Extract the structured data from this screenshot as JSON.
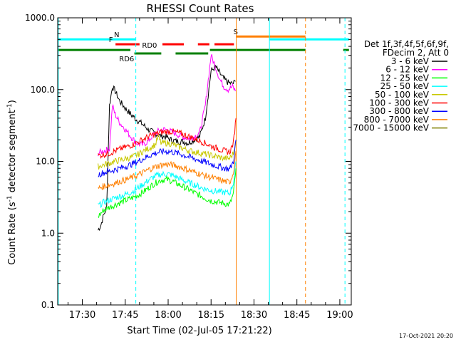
{
  "chart_data": {
    "type": "line",
    "title": "RHESSI Count Rates",
    "xlabel": "Start Time (02-Jul-05 17:21:22)",
    "ylabel_main": "Count Rate (s",
    "ylabel_sup": "-1",
    "ylabel_rest": " detector segment",
    "ylabel_end": ")",
    "yscale": "log",
    "xlim_min": [
      1041.4,
      1144
    ],
    "ylim": [
      0.1,
      1000
    ],
    "x_ticks": [
      {
        "min": 1050,
        "label": "17:30"
      },
      {
        "min": 1065,
        "label": "17:45"
      },
      {
        "min": 1080,
        "label": "18:00"
      },
      {
        "min": 1095,
        "label": "18:15"
      },
      {
        "min": 1110,
        "label": "18:30"
      },
      {
        "min": 1125,
        "label": "18:45"
      },
      {
        "min": 1140,
        "label": "19:00"
      }
    ],
    "y_ticks": [
      {
        "v": 0.1,
        "label": "0.1"
      },
      {
        "v": 1,
        "label": "1.0"
      },
      {
        "v": 10,
        "label": "10.0"
      },
      {
        "v": 100,
        "label": "100.0"
      },
      {
        "v": 1000,
        "label": "1000.0"
      }
    ],
    "legend_header": [
      "Det 1f,3f,4f,5f,6f,9f,",
      "FDecim 2, Att 0"
    ],
    "series": [
      {
        "name": "3 - 6 keV",
        "color": "#000000",
        "points": [
          [
            1055.5,
            1.1
          ],
          [
            1056.5,
            1.3
          ],
          [
            1057.5,
            1.8
          ],
          [
            1058.5,
            2.3
          ],
          [
            1059.5,
            60
          ],
          [
            1060.5,
            110
          ],
          [
            1061.5,
            95
          ],
          [
            1063,
            70
          ],
          [
            1065,
            55
          ],
          [
            1067,
            45
          ],
          [
            1069,
            38
          ],
          [
            1071,
            33
          ],
          [
            1073,
            28
          ],
          [
            1075,
            25
          ],
          [
            1077,
            23
          ],
          [
            1079,
            22
          ],
          [
            1081,
            20
          ],
          [
            1083,
            19
          ],
          [
            1085,
            19
          ],
          [
            1087,
            18
          ],
          [
            1089,
            20
          ],
          [
            1091,
            22
          ],
          [
            1093,
            40
          ],
          [
            1095,
            180
          ],
          [
            1096.5,
            210
          ],
          [
            1098,
            170
          ],
          [
            1099.5,
            140
          ],
          [
            1101,
            125
          ],
          [
            1102.5,
            120
          ],
          [
            1103.5,
            130
          ]
        ]
      },
      {
        "name": "6 - 12 keV",
        "color": "#ff00ff",
        "points": [
          [
            1055.5,
            13
          ],
          [
            1057.5,
            14
          ],
          [
            1059.5,
            15
          ],
          [
            1060.5,
            60
          ],
          [
            1061.5,
            45
          ],
          [
            1063,
            35
          ],
          [
            1065,
            28
          ],
          [
            1067,
            22
          ],
          [
            1069,
            18
          ],
          [
            1071,
            17
          ],
          [
            1073,
            19
          ],
          [
            1075,
            24
          ],
          [
            1077,
            27
          ],
          [
            1079,
            28
          ],
          [
            1081,
            26
          ],
          [
            1083,
            24
          ],
          [
            1085,
            22
          ],
          [
            1087,
            21
          ],
          [
            1089,
            22
          ],
          [
            1091,
            25
          ],
          [
            1093,
            60
          ],
          [
            1095,
            300
          ],
          [
            1096.5,
            210
          ],
          [
            1098,
            140
          ],
          [
            1099.5,
            110
          ],
          [
            1101,
            100
          ],
          [
            1102.5,
            110
          ],
          [
            1103.5,
            95
          ]
        ]
      },
      {
        "name": "12 - 25 keV",
        "color": "#00ff00",
        "points": [
          [
            1055.5,
            1.7
          ],
          [
            1057.5,
            2.1
          ],
          [
            1059.5,
            2.3
          ],
          [
            1061.5,
            2.5
          ],
          [
            1063.5,
            2.7
          ],
          [
            1065.5,
            2.9
          ],
          [
            1067.5,
            3.1
          ],
          [
            1069.5,
            3.4
          ],
          [
            1071.5,
            3.8
          ],
          [
            1073.5,
            4.4
          ],
          [
            1075.5,
            5.0
          ],
          [
            1077.5,
            5.5
          ],
          [
            1079.5,
            5.6
          ],
          [
            1081.5,
            5.3
          ],
          [
            1083.5,
            4.8
          ],
          [
            1085.5,
            4.4
          ],
          [
            1087.5,
            4.0
          ],
          [
            1089.5,
            3.6
          ],
          [
            1091.5,
            3.3
          ],
          [
            1093.5,
            3.0
          ],
          [
            1095.5,
            2.8
          ],
          [
            1097.5,
            2.7
          ],
          [
            1099.5,
            2.6
          ],
          [
            1101.5,
            2.5
          ],
          [
            1102.8,
            3.5
          ],
          [
            1103.7,
            8
          ]
        ]
      },
      {
        "name": "25 - 50 keV",
        "color": "#00ffff",
        "points": [
          [
            1055.5,
            2.4
          ],
          [
            1057.5,
            2.7
          ],
          [
            1059.5,
            2.9
          ],
          [
            1061.5,
            3.1
          ],
          [
            1063.5,
            3.3
          ],
          [
            1065.5,
            3.5
          ],
          [
            1067.5,
            3.8
          ],
          [
            1069.5,
            4.3
          ],
          [
            1071.5,
            4.9
          ],
          [
            1073.5,
            5.6
          ],
          [
            1075.5,
            6.2
          ],
          [
            1077.5,
            6.6
          ],
          [
            1079.5,
            6.7
          ],
          [
            1081.5,
            6.4
          ],
          [
            1083.5,
            5.9
          ],
          [
            1085.5,
            5.4
          ],
          [
            1087.5,
            5.0
          ],
          [
            1089.5,
            4.7
          ],
          [
            1091.5,
            4.3
          ],
          [
            1093.5,
            4.1
          ],
          [
            1095.5,
            3.9
          ],
          [
            1097.5,
            3.8
          ],
          [
            1099.5,
            3.7
          ],
          [
            1101.5,
            3.6
          ],
          [
            1102.8,
            5
          ],
          [
            1103.7,
            10
          ]
        ]
      },
      {
        "name": "50 - 100 keV",
        "color": "#c8c800",
        "points": [
          [
            1055.5,
            8.5
          ],
          [
            1057.5,
            9
          ],
          [
            1059.5,
            9.5
          ],
          [
            1061.5,
            10
          ],
          [
            1063.5,
            10.5
          ],
          [
            1065.5,
            11
          ],
          [
            1067.5,
            11.5
          ],
          [
            1069.5,
            12.5
          ],
          [
            1071.5,
            14
          ],
          [
            1073.5,
            15.5
          ],
          [
            1075.5,
            17
          ],
          [
            1076.5,
            22
          ],
          [
            1077.5,
            18
          ],
          [
            1079.5,
            18
          ],
          [
            1081.5,
            17.5
          ],
          [
            1083.5,
            16
          ],
          [
            1085.5,
            15
          ],
          [
            1087.5,
            14
          ],
          [
            1089.5,
            13.5
          ],
          [
            1091.5,
            13
          ],
          [
            1093.5,
            12.5
          ],
          [
            1095.5,
            12
          ],
          [
            1097.5,
            11.5
          ],
          [
            1099.5,
            11
          ],
          [
            1101.5,
            11
          ],
          [
            1102.8,
            13
          ],
          [
            1103.7,
            20
          ]
        ]
      },
      {
        "name": "100 - 300 keV",
        "color": "#ff0000",
        "points": [
          [
            1055.5,
            12
          ],
          [
            1057.5,
            12.5
          ],
          [
            1059.5,
            13
          ],
          [
            1061.5,
            14
          ],
          [
            1063.5,
            15
          ],
          [
            1065.5,
            16
          ],
          [
            1067.5,
            17
          ],
          [
            1069.5,
            18.5
          ],
          [
            1071.5,
            20.5
          ],
          [
            1073.5,
            22.5
          ],
          [
            1075.5,
            24
          ],
          [
            1077.5,
            25.5
          ],
          [
            1079.5,
            26
          ],
          [
            1081.5,
            26
          ],
          [
            1083.5,
            25
          ],
          [
            1085.5,
            23.5
          ],
          [
            1087.5,
            22
          ],
          [
            1089.5,
            20.5
          ],
          [
            1091.5,
            19
          ],
          [
            1093.5,
            17.5
          ],
          [
            1095.5,
            16
          ],
          [
            1097.5,
            15
          ],
          [
            1099.5,
            14
          ],
          [
            1101.5,
            13.5
          ],
          [
            1102.8,
            18
          ],
          [
            1103.7,
            40
          ]
        ]
      },
      {
        "name": "300 - 800 keV",
        "color": "#0000ff",
        "points": [
          [
            1055.5,
            6.5
          ],
          [
            1057.5,
            7
          ],
          [
            1059.5,
            7.3
          ],
          [
            1061.5,
            7.7
          ],
          [
            1063.5,
            8.1
          ],
          [
            1065.5,
            8.6
          ],
          [
            1067.5,
            9.2
          ],
          [
            1069.5,
            10.0
          ],
          [
            1071.5,
            11.0
          ],
          [
            1073.5,
            12.1
          ],
          [
            1075.5,
            13.0
          ],
          [
            1077.5,
            13.6
          ],
          [
            1079.5,
            13.8
          ],
          [
            1081.5,
            13.5
          ],
          [
            1083.5,
            12.9
          ],
          [
            1085.5,
            12.2
          ],
          [
            1087.5,
            11.5
          ],
          [
            1089.5,
            10.8
          ],
          [
            1091.5,
            10.2
          ],
          [
            1093.5,
            9.6
          ],
          [
            1095.5,
            9.0
          ],
          [
            1097.5,
            8.5
          ],
          [
            1099.5,
            8.1
          ],
          [
            1101.5,
            7.8
          ],
          [
            1102.8,
            10
          ],
          [
            1103.7,
            20
          ]
        ]
      },
      {
        "name": "800 - 7000 keV",
        "color": "#ff8000",
        "points": [
          [
            1055.5,
            4.2
          ],
          [
            1057.5,
            4.5
          ],
          [
            1059.5,
            4.7
          ],
          [
            1061.5,
            5.0
          ],
          [
            1063.5,
            5.3
          ],
          [
            1065.5,
            5.6
          ],
          [
            1067.5,
            6.0
          ],
          [
            1069.5,
            6.5
          ],
          [
            1071.5,
            7.1
          ],
          [
            1073.5,
            7.8
          ],
          [
            1075.5,
            8.4
          ],
          [
            1077.5,
            8.9
          ],
          [
            1079.5,
            9.1
          ],
          [
            1081.5,
            8.9
          ],
          [
            1083.5,
            8.5
          ],
          [
            1085.5,
            8.0
          ],
          [
            1087.5,
            7.5
          ],
          [
            1089.5,
            7.0
          ],
          [
            1091.5,
            6.6
          ],
          [
            1093.5,
            6.2
          ],
          [
            1095.5,
            5.9
          ],
          [
            1097.5,
            5.6
          ],
          [
            1099.5,
            5.3
          ],
          [
            1101.5,
            5.1
          ],
          [
            1102.8,
            7
          ],
          [
            1103.7,
            14
          ]
        ]
      },
      {
        "name": "7000 - 15000 keV",
        "color": "#808000",
        "points": []
      }
    ],
    "attenuator_flags": [
      {
        "label": "N",
        "color": "#00ffff",
        "y_axes_fraction": 0.925,
        "label_min": 1062,
        "segments": [
          [
            1041.4,
            1068.6
          ],
          [
            1115.4,
            1143.2
          ]
        ]
      },
      {
        "label": "S",
        "color": "#ff8000",
        "y_axes_fraction": 0.935,
        "label_min": 1103.6,
        "segments": [
          [
            1103.8,
            1128
          ]
        ]
      },
      {
        "label": "F",
        "color": "#ff0000",
        "y_axes_fraction": 0.908,
        "label_min": 1060,
        "segments": [
          [
            1061.6,
            1070
          ],
          [
            1078,
            1085.5
          ],
          [
            1090.4,
            1094.4
          ],
          [
            1096.2,
            1103
          ]
        ]
      },
      {
        "label": "RD0",
        "color": "#008000",
        "y_axes_fraction": 0.888,
        "label_min": 1073.5,
        "segments": [
          [
            1041.4,
            1066.8
          ],
          [
            1094.6,
            1128
          ],
          [
            1141.2,
            1143.2
          ]
        ]
      },
      {
        "label": "RD6",
        "color": "#008000",
        "y_axes_fraction": 0.876,
        "label_min": 1065.5,
        "segments": [
          [
            1068.2,
            1077.6
          ],
          [
            1082.6,
            1094
          ]
        ]
      }
    ],
    "vertical_lines": [
      {
        "min": 1041.6,
        "color": "#00ffff",
        "dashed": false
      },
      {
        "min": 1068.7,
        "color": "#00ffff",
        "dashed": true
      },
      {
        "min": 1103.8,
        "color": "#ff8000",
        "dashed": false
      },
      {
        "min": 1115.4,
        "color": "#00ffff",
        "dashed": false
      },
      {
        "min": 1128.0,
        "color": "#ff8000",
        "dashed": true
      },
      {
        "min": 1141.8,
        "color": "#00ffff",
        "dashed": true
      }
    ],
    "timestamp": "17-Oct-2021 20:20"
  }
}
